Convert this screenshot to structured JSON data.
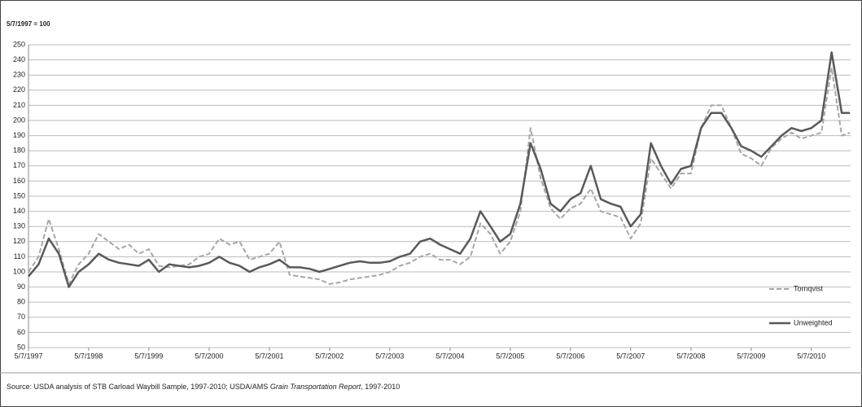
{
  "chart_data": {
    "type": "line",
    "y_label": "5/7/1997 = 100",
    "source": {
      "text": "Source: USDA analysis of STB Carload Waybill Sample, 1997-2010;  USDA/AMS ",
      "italic": "Grain Transportation Report",
      "tail": ", 1997-2010"
    },
    "x": [
      "5/7/1997",
      "7/7/1997",
      "9/7/1997",
      "11/7/1997",
      "1/7/1998",
      "3/7/1998",
      "5/7/1998",
      "7/7/1998",
      "9/7/1998",
      "11/7/1998",
      "1/7/1999",
      "3/7/1999",
      "5/7/1999",
      "7/7/1999",
      "9/7/1999",
      "11/7/1999",
      "1/7/2000",
      "3/7/2000",
      "5/7/2000",
      "7/7/2000",
      "9/7/2000",
      "11/7/2000",
      "1/7/2001",
      "3/7/2001",
      "5/7/2001",
      "7/7/2001",
      "9/7/2001",
      "11/7/2001",
      "1/7/2002",
      "3/7/2002",
      "5/7/2002",
      "7/7/2002",
      "9/7/2002",
      "11/7/2002",
      "1/7/2003",
      "3/7/2003",
      "5/7/2003",
      "7/7/2003",
      "9/7/2003",
      "11/7/2003",
      "1/7/2004",
      "3/7/2004",
      "5/7/2004",
      "7/7/2004",
      "9/7/2004",
      "11/7/2004",
      "1/7/2005",
      "3/7/2005",
      "5/7/2005",
      "7/7/2005",
      "9/7/2005",
      "11/7/2005",
      "1/7/2006",
      "3/7/2006",
      "5/7/2006",
      "7/7/2006",
      "9/7/2006",
      "11/7/2006",
      "1/7/2007",
      "3/7/2007",
      "5/7/2007",
      "7/7/2007",
      "9/7/2007",
      "11/7/2007",
      "1/7/2008",
      "3/7/2008",
      "5/7/2008",
      "7/7/2008",
      "9/7/2008",
      "11/7/2008",
      "1/7/2009",
      "3/7/2009",
      "5/7/2009",
      "7/7/2009",
      "9/7/2009",
      "11/7/2009",
      "1/7/2010",
      "3/7/2010",
      "5/7/2010",
      "7/7/2010",
      "9/7/2010",
      "11/7/2010",
      "12/27/2010"
    ],
    "series": [
      {
        "name": "Tornqvist",
        "color": "#a6a6a6",
        "dashed": true,
        "values": [
          100,
          110,
          135,
          115,
          92,
          105,
          112,
          125,
          120,
          115,
          118,
          112,
          115,
          104,
          103,
          104,
          105,
          110,
          112,
          122,
          118,
          120,
          108,
          110,
          112,
          120,
          98,
          97,
          96,
          95,
          92,
          93,
          95,
          96,
          97,
          98,
          100,
          104,
          106,
          110,
          112,
          108,
          108,
          105,
          110,
          132,
          125,
          112,
          120,
          140,
          195,
          162,
          142,
          135,
          142,
          145,
          155,
          140,
          138,
          136,
          122,
          132,
          175,
          165,
          155,
          165,
          165,
          195,
          210,
          210,
          195,
          178,
          175,
          170,
          182,
          188,
          192,
          188,
          190,
          192,
          235,
          190,
          192
        ]
      },
      {
        "name": "Unweighted",
        "color": "#595959",
        "dashed": false,
        "values": [
          97,
          105,
          122,
          112,
          90,
          100,
          105,
          112,
          108,
          106,
          105,
          104,
          108,
          100,
          105,
          104,
          103,
          104,
          106,
          110,
          106,
          104,
          100,
          103,
          105,
          108,
          103,
          103,
          102,
          100,
          102,
          104,
          106,
          107,
          106,
          106,
          107,
          110,
          112,
          120,
          122,
          118,
          115,
          112,
          122,
          140,
          130,
          120,
          125,
          145,
          185,
          168,
          145,
          140,
          148,
          152,
          170,
          148,
          145,
          143,
          130,
          138,
          185,
          170,
          158,
          168,
          170,
          195,
          205,
          205,
          195,
          183,
          180,
          176,
          183,
          190,
          195,
          193,
          195,
          200,
          245,
          205,
          205
        ]
      }
    ],
    "xlim": [
      "5/7/1997",
      "12/31/2010"
    ],
    "xticks": [
      "5/7/1997",
      "5/7/1998",
      "5/7/1999",
      "5/7/2000",
      "5/7/2001",
      "5/7/2002",
      "5/7/2003",
      "5/7/2004",
      "5/7/2005",
      "5/7/2006",
      "5/7/2007",
      "5/7/2008",
      "5/7/2009",
      "5/7/2010"
    ],
    "ylim": [
      50,
      250
    ],
    "yticks": [
      50,
      60,
      70,
      80,
      90,
      100,
      110,
      120,
      130,
      140,
      150,
      160,
      170,
      180,
      190,
      200,
      210,
      220,
      230,
      240,
      250
    ],
    "grid": true,
    "legend": "lower right"
  }
}
